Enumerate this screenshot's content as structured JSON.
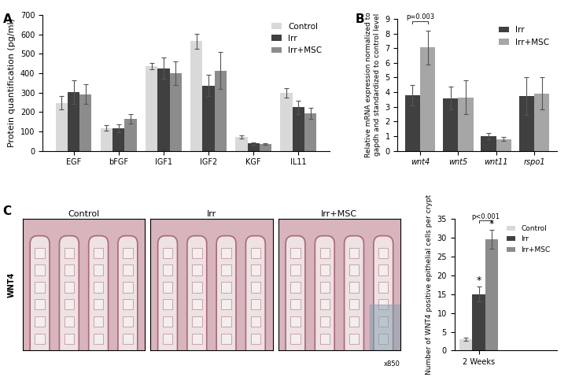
{
  "chart_data": [
    {
      "type": "bar",
      "panel": "A",
      "categories": [
        "EGF",
        "bFGF",
        "IGF1",
        "IGF2",
        "KGF",
        "IL11"
      ],
      "series": [
        {
          "name": "Control",
          "color": "#d9d9d9",
          "values": [
            248,
            118,
            437,
            565,
            72,
            300
          ],
          "error": [
            35,
            15,
            15,
            40,
            8,
            25
          ]
        },
        {
          "name": "Irr",
          "color": "#404040",
          "values": [
            302,
            117,
            425,
            337,
            37,
            225
          ],
          "error": [
            60,
            20,
            55,
            55,
            5,
            35
          ]
        },
        {
          "name": "Irr+MSC",
          "color": "#8c8c8c",
          "values": [
            292,
            165,
            400,
            413,
            35,
            193
          ],
          "error": [
            50,
            25,
            60,
            95,
            5,
            30
          ]
        }
      ],
      "ylabel": "Protein quantification (pg/ml)",
      "ylim": [
        0,
        700
      ],
      "yticks": [
        0,
        100,
        200,
        300,
        400,
        500,
        600,
        700
      ],
      "legend": "upper right"
    },
    {
      "type": "bar",
      "panel": "B",
      "categories": [
        "wnt4",
        "wnt5",
        "wnt11",
        "rspo1"
      ],
      "series": [
        {
          "name": "Irr",
          "color": "#404040",
          "values": [
            3.8,
            3.6,
            1.0,
            3.75
          ],
          "error": [
            0.7,
            0.8,
            0.2,
            1.3
          ]
        },
        {
          "name": "Irr+MSC",
          "color": "#a6a6a6",
          "values": [
            7.05,
            3.65,
            0.8,
            3.9
          ],
          "error": [
            1.15,
            1.15,
            0.15,
            1.1
          ]
        }
      ],
      "ylabel": "Relative mRNA expression normalized to gapdh and standardized to control level",
      "ylim": [
        0,
        9
      ],
      "yticks": [
        0,
        1,
        2,
        3,
        4,
        5,
        6,
        7,
        8,
        9
      ],
      "legend": "upper right",
      "annotations": [
        {
          "text": "p=0.003",
          "category": "wnt4",
          "between": [
            "Irr",
            "Irr+MSC"
          ]
        }
      ]
    },
    {
      "type": "bar",
      "panel": "C",
      "categories": [
        "2 Weeks"
      ],
      "series": [
        {
          "name": "Control",
          "color": "#d9d9d9",
          "values": [
            3
          ],
          "error": [
            0.5
          ]
        },
        {
          "name": "Irr",
          "color": "#404040",
          "values": [
            15
          ],
          "error": [
            2
          ]
        },
        {
          "name": "Irr+MSC",
          "color": "#8c8c8c",
          "values": [
            29.5
          ],
          "error": [
            2.5
          ]
        }
      ],
      "ylabel": "Number of WNT4 positive epithelial cells per crypt",
      "ylim": [
        0,
        35
      ],
      "yticks": [
        0,
        5,
        10,
        15,
        20,
        25,
        30,
        35
      ],
      "legend": "upper right",
      "annotations": [
        {
          "text": "p<0.001",
          "category": "2 Weeks",
          "between": [
            "Irr",
            "Irr+MSC"
          ]
        },
        {
          "text": "*",
          "category": "2 Weeks",
          "series": "Irr"
        },
        {
          "text": "*",
          "category": "2 Weeks",
          "series": "Irr+MSC"
        }
      ]
    }
  ],
  "images": {
    "panel": "C",
    "stain": "WNT4",
    "titles": [
      "Control",
      "Irr",
      "Irr+MSC"
    ],
    "magnification": "x850"
  }
}
